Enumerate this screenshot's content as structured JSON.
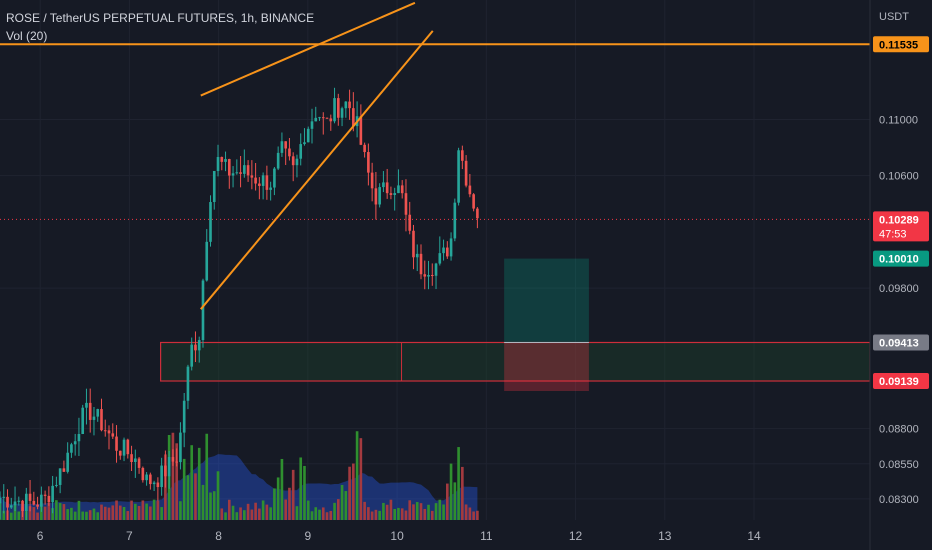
{
  "header": {
    "title": "ROSE / TetherUS PERPETUAL FUTURES, 1h, BINANCE",
    "indicator": "Vol (20)"
  },
  "chart_data": {
    "type": "candlestick",
    "title": "ROSE / TetherUS PERPETUAL FUTURES, 1h, BINANCE",
    "currency": "USDT",
    "ylim": [
      0.0815,
      0.1185
    ],
    "xlim": [
      5.55,
      15.3
    ],
    "x_ticks": [
      "6",
      "7",
      "8",
      "9",
      "10",
      "11",
      "12",
      "13",
      "14"
    ],
    "y_ticks": [
      "0.11000",
      "0.10600",
      "0.09800",
      "0.08800",
      "0.08550",
      "0.08300"
    ],
    "price_markers": [
      {
        "label": "0.11535",
        "value": 0.11535,
        "color": "#f7931a",
        "text_color": "#000000"
      },
      {
        "label": "0.10010",
        "value": 0.1001,
        "color": "#089981",
        "text_color": "#ffffff"
      },
      {
        "label": "0.09413",
        "value": 0.09413,
        "color": "#787b86",
        "text_color": "#ffffff"
      },
      {
        "label": "0.09139",
        "value": 0.09139,
        "color": "#f23645",
        "text_color": "#ffffff"
      }
    ],
    "last_price": {
      "label": "0.10289",
      "countdown": "47:53",
      "value": 0.10289,
      "color": "#f23645"
    },
    "resistance_line": {
      "value": 0.11535,
      "color": "#f7931a"
    },
    "wedge_lines": [
      {
        "x1": 7.8,
        "y1": 0.1117,
        "x2": 10.2,
        "y2": 0.1183
      },
      {
        "x1": 7.8,
        "y1": 0.0965,
        "x2": 10.4,
        "y2": 0.1163
      }
    ],
    "demand_zone": {
      "x_start": 7.35,
      "x_end": 15.3,
      "x_split": 10.05,
      "top": 0.09413,
      "bottom": 0.09139,
      "color": "#cc2e3a"
    },
    "position_tool": {
      "x_start": 11.2,
      "x_end": 12.15,
      "entry": 0.09413,
      "target": 0.1001,
      "stop": 0.09139
    },
    "candle_anchors": [
      [
        5.55,
        0.0831
      ],
      [
        5.9,
        0.0827
      ],
      [
        6.05,
        0.0829
      ],
      [
        6.25,
        0.0852
      ],
      [
        6.45,
        0.0886
      ],
      [
        6.55,
        0.0893
      ],
      [
        6.7,
        0.0883
      ],
      [
        6.85,
        0.0868
      ],
      [
        7.0,
        0.0862
      ],
      [
        7.1,
        0.0856
      ],
      [
        7.2,
        0.0842
      ],
      [
        7.35,
        0.0846
      ],
      [
        7.55,
        0.0862
      ],
      [
        7.62,
        0.0905
      ],
      [
        7.7,
        0.0938
      ],
      [
        7.78,
        0.0945
      ],
      [
        7.83,
        0.0991
      ],
      [
        7.9,
        0.1045
      ],
      [
        7.97,
        0.1072
      ],
      [
        8.1,
        0.1063
      ],
      [
        8.3,
        0.1062
      ],
      [
        8.45,
        0.1057
      ],
      [
        8.6,
        0.1055
      ],
      [
        8.7,
        0.1078
      ],
      [
        8.85,
        0.1062
      ],
      [
        8.95,
        0.109
      ],
      [
        9.1,
        0.1107
      ],
      [
        9.2,
        0.1095
      ],
      [
        9.3,
        0.1108
      ],
      [
        9.45,
        0.1112
      ],
      [
        9.55,
        0.1095
      ],
      [
        9.65,
        0.1067
      ],
      [
        9.75,
        0.1045
      ],
      [
        9.85,
        0.1049
      ],
      [
        9.95,
        0.1055
      ],
      [
        10.05,
        0.1047
      ],
      [
        10.15,
        0.1012
      ],
      [
        10.25,
        0.0995
      ],
      [
        10.35,
        0.0996
      ],
      [
        10.45,
        0.0997
      ],
      [
        10.55,
        0.1006
      ],
      [
        10.62,
        0.1018
      ],
      [
        10.68,
        0.1084
      ],
      [
        10.75,
        0.1066
      ],
      [
        10.82,
        0.1048
      ],
      [
        10.9,
        0.1033
      ]
    ],
    "candle_count": 128,
    "volume_ylim": [
      0,
      18
    ],
    "volume": {
      "base": 1.2,
      "spike_ranges": [
        [
          7.4,
          8.0
        ],
        [
          8.6,
          9.0
        ],
        [
          9.3,
          9.6
        ],
        [
          10.55,
          10.75
        ]
      ],
      "ma_color": "#2962ff"
    },
    "colors": {
      "up": "#26a69a",
      "down": "#ef5350",
      "volume_up": "#2f8f2f",
      "volume_down": "#a43a3f",
      "grid": "#1f2330",
      "axis_text": "#b2b5be"
    }
  }
}
